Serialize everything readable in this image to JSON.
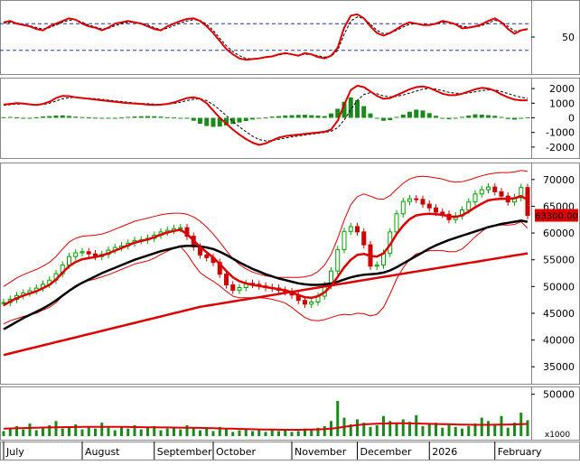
{
  "chart_data": [
    {
      "type": "line",
      "panel": "rsi",
      "ylim": [
        0,
        100
      ],
      "tick_labels": [
        "50"
      ],
      "reference_lines": [
        30,
        70
      ],
      "series": [
        {
          "color": "#dd0000",
          "values": [
            72,
            74,
            70,
            68,
            66,
            62,
            60,
            66,
            70,
            74,
            78,
            76,
            70,
            66,
            64,
            60,
            64,
            70,
            72,
            74,
            72,
            70,
            66,
            62,
            60,
            66,
            70,
            74,
            77,
            78,
            74,
            66,
            56,
            44,
            32,
            24,
            18,
            16,
            17,
            18,
            20,
            21,
            24,
            26,
            24,
            22,
            26,
            24,
            20,
            18,
            22,
            34,
            64,
            82,
            84,
            78,
            66,
            56,
            52,
            56,
            62,
            68,
            72,
            70,
            68,
            68,
            70,
            74,
            72,
            69,
            63,
            64,
            66,
            69,
            74,
            78,
            72,
            62,
            55,
            60,
            62
          ]
        },
        {
          "color": "#000000",
          "values": [
            71,
            72,
            71,
            69,
            67,
            64,
            62,
            64,
            68,
            72,
            75,
            76,
            72,
            68,
            65,
            62,
            63,
            67,
            70,
            72,
            72,
            71,
            68,
            64,
            61,
            63,
            67,
            71,
            74,
            76,
            75,
            69,
            60,
            48,
            37,
            28,
            22,
            18,
            17,
            18,
            19,
            21,
            23,
            25,
            24,
            23,
            24,
            24,
            22,
            20,
            21,
            30,
            54,
            74,
            80,
            78,
            69,
            60,
            55,
            56,
            60,
            65,
            69,
            70,
            69,
            68,
            69,
            72,
            72,
            70,
            66,
            65,
            65,
            67,
            71,
            75,
            73,
            66,
            59,
            60,
            61
          ]
        }
      ]
    },
    {
      "type": "bar",
      "panel": "macd",
      "ylim": [
        -2500,
        2500
      ],
      "tick_labels": [
        "2000",
        "1000",
        "0",
        "-1000",
        "-2000"
      ],
      "histogram": [
        40,
        60,
        30,
        -10,
        -20,
        30,
        90,
        120,
        160,
        170,
        130,
        80,
        50,
        30,
        10,
        -20,
        -40,
        -20,
        20,
        60,
        90,
        110,
        120,
        110,
        80,
        40,
        20,
        -10,
        -60,
        -200,
        -400,
        -560,
        -620,
        -600,
        -520,
        -420,
        -320,
        -220,
        -120,
        -40,
        20,
        80,
        120,
        160,
        180,
        200,
        210,
        180,
        150,
        120,
        300,
        620,
        1100,
        1400,
        1200,
        800,
        300,
        -50,
        -200,
        -160,
        60,
        220,
        420,
        560,
        500,
        320,
        140,
        -40,
        -100,
        -60,
        60,
        160,
        240,
        220,
        180,
        140,
        60,
        -80,
        -120,
        -40,
        40
      ],
      "series": [
        {
          "color": "#dd0000",
          "values": [
            900,
            950,
            1000,
            980,
            920,
            880,
            950,
            1100,
            1350,
            1500,
            1480,
            1400,
            1350,
            1300,
            1250,
            1200,
            1150,
            1100,
            1050,
            1000,
            980,
            950,
            900,
            880,
            900,
            950,
            1050,
            1200,
            1350,
            1400,
            1300,
            1000,
            500,
            0,
            -400,
            -800,
            -1150,
            -1450,
            -1700,
            -1850,
            -1750,
            -1550,
            -1350,
            -1250,
            -1200,
            -1150,
            -1100,
            -1050,
            -1000,
            -950,
            -800,
            -200,
            900,
            1900,
            2200,
            2100,
            1800,
            1500,
            1300,
            1350,
            1550,
            1750,
            1950,
            2100,
            2150,
            2050,
            1850,
            1650,
            1550,
            1550,
            1650,
            1800,
            1950,
            2050,
            2000,
            1850,
            1600,
            1400,
            1250,
            1200,
            1200
          ]
        },
        {
          "color": "#000000",
          "values": [
            860,
            900,
            940,
            950,
            930,
            900,
            920,
            1000,
            1150,
            1300,
            1380,
            1390,
            1370,
            1340,
            1300,
            1260,
            1210,
            1160,
            1110,
            1060,
            1020,
            990,
            960,
            930,
            920,
            930,
            980,
            1070,
            1180,
            1270,
            1300,
            1180,
            900,
            550,
            150,
            -250,
            -620,
            -950,
            -1250,
            -1480,
            -1580,
            -1560,
            -1470,
            -1380,
            -1300,
            -1240,
            -1180,
            -1120,
            -1060,
            -1000,
            -920,
            -680,
            -150,
            560,
            1200,
            1600,
            1720,
            1650,
            1500,
            1440,
            1470,
            1560,
            1690,
            1830,
            1960,
            2010,
            1960,
            1860,
            1750,
            1680,
            1660,
            1700,
            1780,
            1860,
            1910,
            1900,
            1800,
            1660,
            1520,
            1410,
            1330
          ]
        }
      ]
    },
    {
      "type": "line",
      "panel": "price",
      "ylim": [
        32500,
        72500
      ],
      "tick_labels": [
        "70000",
        "65000",
        "60000",
        "55000",
        "50000",
        "45000",
        "40000",
        "35000"
      ],
      "last_price_label": "63300.00",
      "close": [
        47000,
        47600,
        48300,
        48800,
        49200,
        49700,
        50400,
        51200,
        52400,
        54000,
        55600,
        56300,
        56500,
        56100,
        55600,
        56000,
        56800,
        57300,
        57600,
        58100,
        58600,
        58700,
        59000,
        59600,
        60200,
        60500,
        60800,
        61000,
        59400,
        57400,
        55900,
        55400,
        54500,
        52300,
        50300,
        49300,
        49800,
        50600,
        50400,
        50100,
        49800,
        49700,
        49300,
        49000,
        48400,
        47400,
        46700,
        47100,
        48200,
        50200,
        52900,
        56900,
        60300,
        61200,
        60200,
        57800,
        53800,
        54000,
        56200,
        60200,
        63600,
        65900,
        66400,
        66300,
        65400,
        64700,
        63900,
        63500,
        62500,
        63200,
        64300,
        65800,
        67300,
        68100,
        68600,
        67700,
        66900,
        65800,
        66600,
        68500,
        63300
      ],
      "series": [
        {
          "color": "#dd0000",
          "values": [
            46500,
            47200,
            47800,
            48300,
            48700,
            49100,
            49700,
            50300,
            51300,
            52600,
            53800,
            54600,
            55100,
            55300,
            55500,
            55800,
            56200,
            56700,
            57200,
            57700,
            58200,
            58500,
            58800,
            59200,
            59700,
            60100,
            60400,
            60600,
            59800,
            58600,
            57400,
            56400,
            55400,
            54200,
            52900,
            51700,
            51000,
            50600,
            50300,
            50100,
            49900,
            49700,
            49500,
            49300,
            48900,
            48400,
            48000,
            47900,
            48200,
            48900,
            50100,
            51800,
            53600,
            55000,
            55900,
            56100,
            55700,
            55600,
            56200,
            57800,
            59800,
            61400,
            62600,
            63300,
            63500,
            63600,
            63500,
            63400,
            63100,
            63000,
            63300,
            64000,
            64800,
            65500,
            66100,
            66300,
            66400,
            66400,
            66500,
            66900,
            66200
          ]
        },
        {
          "color": "#000000",
          "values": [
            42000,
            42700,
            43400,
            44100,
            44700,
            45300,
            45900,
            46600,
            47400,
            48300,
            49200,
            50000,
            50700,
            51300,
            51900,
            52500,
            53000,
            53500,
            54000,
            54500,
            55000,
            55400,
            55800,
            56200,
            56600,
            56900,
            57200,
            57500,
            57600,
            57600,
            57500,
            57300,
            57000,
            56500,
            55900,
            55200,
            54500,
            53900,
            53300,
            52800,
            52300,
            51900,
            51500,
            51200,
            50900,
            50600,
            50400,
            50300,
            50300,
            50400,
            50600,
            50900,
            51300,
            51700,
            52000,
            52200,
            52300,
            52400,
            52600,
            53000,
            53600,
            54300,
            55000,
            55700,
            56400,
            57100,
            57700,
            58200,
            58700,
            59100,
            59500,
            59900,
            60300,
            60700,
            61100,
            61400,
            61700,
            61900,
            62100,
            62300,
            62100
          ]
        },
        {
          "color": "#dd0000",
          "values": [
            37200,
            37500,
            37800,
            38100,
            38400,
            38700,
            39000,
            39300,
            39600,
            39900,
            40200,
            40500,
            40800,
            41100,
            41400,
            41700,
            42000,
            42300,
            42600,
            42900,
            43200,
            43500,
            43800,
            44100,
            44400,
            44700,
            45000,
            45300,
            45600,
            45900,
            46200,
            46400,
            46600,
            46800,
            47000,
            47200,
            47400,
            47600,
            47800,
            48000,
            48200,
            48400,
            48600,
            48800,
            49000,
            49200,
            49400,
            49600,
            49800,
            50000,
            50200,
            50400,
            50600,
            50800,
            51000,
            51200,
            51400,
            51600,
            51800,
            52000,
            52200,
            52400,
            52600,
            52800,
            53000,
            53200,
            53400,
            53600,
            53800,
            54000,
            54200,
            54400,
            54600,
            54800,
            55000,
            55200,
            55400,
            55600,
            55800,
            56000,
            56200
          ]
        }
      ],
      "bands": {
        "color": "#dd0000",
        "upper": [
          50000,
          50800,
          51600,
          52200,
          52700,
          53200,
          53800,
          54500,
          55600,
          57000,
          58300,
          59000,
          59400,
          59500,
          59600,
          59800,
          60200,
          60700,
          61200,
          61700,
          62200,
          62500,
          62800,
          63100,
          63400,
          63600,
          63700,
          63700,
          63500,
          63000,
          62200,
          61100,
          59800,
          58300,
          56700,
          55200,
          54100,
          53300,
          52700,
          52300,
          52000,
          51800,
          51700,
          51700,
          51700,
          51700,
          51800,
          52100,
          52800,
          54000,
          56000,
          59000,
          62400,
          65300,
          66800,
          67300,
          66900,
          66400,
          66300,
          67000,
          68200,
          69300,
          70100,
          70500,
          70600,
          70500,
          70300,
          70100,
          69700,
          69500,
          69600,
          69900,
          70300,
          70700,
          71000,
          71200,
          71300,
          71300,
          71400,
          71700,
          71500
        ],
        "lower": [
          43000,
          43600,
          44000,
          44400,
          44700,
          45000,
          45600,
          46100,
          47000,
          48200,
          49300,
          50200,
          50800,
          51100,
          51400,
          51800,
          52200,
          52700,
          53200,
          53700,
          54200,
          54500,
          54800,
          55300,
          56000,
          56600,
          57100,
          57500,
          56100,
          54200,
          52600,
          51700,
          51000,
          50100,
          49100,
          48200,
          47900,
          47900,
          47900,
          47900,
          47800,
          47600,
          47300,
          46900,
          46100,
          45100,
          44200,
          43700,
          43600,
          43800,
          44200,
          44600,
          44800,
          44700,
          45000,
          44900,
          44500,
          44800,
          46100,
          48600,
          51400,
          53500,
          55100,
          56100,
          56400,
          56700,
          56700,
          56700,
          56500,
          56500,
          57000,
          58100,
          59300,
          60300,
          61200,
          61400,
          61500,
          61500,
          61600,
          62100,
          60900
        ]
      }
    },
    {
      "type": "bar",
      "panel": "volume",
      "ylim": [
        0,
        55000
      ],
      "tick_labels": [
        "50000"
      ],
      "unit_label": "x1000",
      "values": [
        6000,
        9000,
        12000,
        8000,
        15000,
        7000,
        10000,
        13000,
        18000,
        9000,
        11000,
        14000,
        8000,
        12000,
        9000,
        16000,
        10000,
        7000,
        11000,
        9000,
        13000,
        8000,
        10000,
        12000,
        7000,
        9000,
        11000,
        8000,
        13000,
        10000,
        7000,
        9000,
        6000,
        11000,
        8000,
        5000,
        7000,
        9000,
        6000,
        8000,
        5000,
        7000,
        6000,
        8000,
        5000,
        6000,
        9000,
        7000,
        10000,
        12000,
        18000,
        42000,
        22000,
        14000,
        20000,
        16000,
        11000,
        13000,
        24000,
        18000,
        15000,
        20000,
        17000,
        25000,
        12000,
        14000,
        16000,
        10000,
        13000,
        11000,
        9000,
        12000,
        15000,
        22000,
        18000,
        14000,
        24000,
        10000,
        16000,
        28000,
        19000
      ],
      "ma": [
        9000,
        9200,
        9400,
        9600,
        9800,
        10000,
        10200,
        10400,
        10600,
        10700,
        10800,
        10900,
        11000,
        11000,
        11000,
        11100,
        11100,
        11000,
        11000,
        10900,
        10800,
        10700,
        10600,
        10500,
        10400,
        10300,
        10200,
        10100,
        10000,
        9900,
        9800,
        9600,
        9400,
        9200,
        9000,
        8800,
        8600,
        8400,
        8200,
        8000,
        7900,
        7800,
        7700,
        7600,
        7600,
        7600,
        7700,
        7800,
        8000,
        8300,
        8800,
        9800,
        11000,
        12200,
        13200,
        14000,
        14500,
        14800,
        15000,
        15200,
        15300,
        15300,
        15200,
        15100,
        14900,
        14700,
        14500,
        14300,
        14100,
        13900,
        13700,
        13600,
        13500,
        13500,
        13500,
        13600,
        13700,
        13800,
        14000,
        14300,
        14600
      ]
    }
  ],
  "x_axis": {
    "months": [
      {
        "label": "July",
        "index": 0
      },
      {
        "label": "August",
        "index": 12
      },
      {
        "label": "September",
        "index": 23
      },
      {
        "label": "October",
        "index": 32
      },
      {
        "label": "November",
        "index": 44
      },
      {
        "label": "December",
        "index": 54
      },
      {
        "label": "2026",
        "index": 65
      },
      {
        "label": "February",
        "index": 75
      }
    ]
  }
}
